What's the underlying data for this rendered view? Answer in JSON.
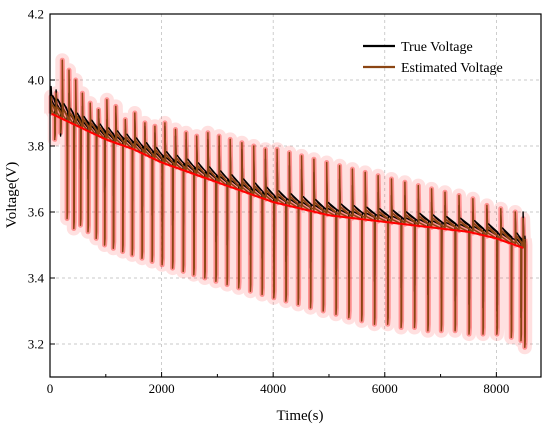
{
  "chart_data": {
    "type": "line",
    "xlabel": "Time(s)",
    "ylabel": "Voltage(V)",
    "xlim": [
      0,
      8800
    ],
    "ylim": [
      3.1,
      4.2
    ],
    "xticks": [
      0,
      2000,
      4000,
      6000,
      8000
    ],
    "xtick_labels": [
      "0",
      "2000",
      "4000",
      "6000",
      "8000"
    ],
    "yticks": [
      3.2,
      3.4,
      3.6,
      3.8,
      4.0,
      4.2
    ],
    "ytick_labels": [
      "3.2",
      "3.4",
      "3.6",
      "3.8",
      "4.0",
      "4.2"
    ],
    "grid": true,
    "legend_position": "top-right",
    "colors": {
      "true_voltage": "#000000",
      "estimated_voltage": "#8b4513",
      "estimate_band": "#ff0000",
      "grid": "#b8b8b8"
    },
    "pulse_times": [
      20,
      110,
      220,
      340,
      460,
      580,
      720,
      870,
      1020,
      1180,
      1350,
      1520,
      1700,
      1880,
      2060,
      2250,
      2440,
      2630,
      2830,
      3030,
      3230,
      3440,
      3650,
      3860,
      4070,
      4290,
      4510,
      4730,
      4960,
      5190,
      5420,
      5650,
      5880,
      6120,
      6360,
      6600,
      6840,
      7080,
      7330,
      7580,
      7830,
      8080,
      8340,
      8480
    ],
    "series": [
      {
        "name": "True Voltage",
        "x": [
          0,
          500,
          1000,
          1500,
          2000,
          2500,
          3000,
          3500,
          4000,
          4500,
          5000,
          5500,
          6000,
          6500,
          7000,
          7500,
          8000,
          8500
        ],
        "values": [
          3.93,
          3.87,
          3.83,
          3.8,
          3.76,
          3.73,
          3.7,
          3.67,
          3.64,
          3.62,
          3.6,
          3.59,
          3.58,
          3.57,
          3.56,
          3.55,
          3.53,
          3.5
        ],
        "pulse_high": [
          3.98,
          3.97,
          3.97,
          3.96,
          3.93,
          3.92,
          3.89,
          3.91,
          3.88,
          3.9,
          3.85,
          3.88,
          3.86,
          3.84,
          3.86,
          3.83,
          3.82,
          3.8,
          3.82,
          3.8,
          3.78,
          3.79,
          3.77,
          3.76,
          3.75,
          3.74,
          3.73,
          3.72,
          3.71,
          3.7,
          3.68,
          3.67,
          3.66,
          3.65,
          3.65,
          3.64,
          3.63,
          3.62,
          3.62,
          3.6,
          3.61,
          3.59,
          3.58,
          3.6
        ],
        "pulse_low": [
          3.82,
          3.83,
          3.8,
          3.76,
          3.73,
          3.7,
          3.67,
          3.66,
          3.65,
          3.63,
          3.62,
          3.6,
          3.59,
          3.57,
          3.56,
          3.55,
          3.54,
          3.52,
          3.51,
          3.5,
          3.49,
          3.47,
          3.46,
          3.45,
          3.45,
          3.44,
          3.43,
          3.42,
          3.41,
          3.4,
          3.4,
          3.39,
          3.38,
          3.37,
          3.36,
          3.35,
          3.34,
          3.33,
          3.32,
          3.31,
          3.3,
          3.29,
          3.28,
          3.22
        ]
      },
      {
        "name": "Estimated Voltage",
        "x": [
          0,
          500,
          1000,
          1500,
          2000,
          2500,
          3000,
          3500,
          4000,
          4500,
          5000,
          5500,
          6000,
          6500,
          7000,
          7500,
          8000,
          8500
        ],
        "values": [
          3.9,
          3.86,
          3.82,
          3.79,
          3.75,
          3.72,
          3.69,
          3.66,
          3.63,
          3.61,
          3.59,
          3.58,
          3.57,
          3.56,
          3.55,
          3.54,
          3.52,
          3.49
        ],
        "pulse_high": [
          3.95,
          3.96,
          4.06,
          4.03,
          4.0,
          3.96,
          3.93,
          3.91,
          3.94,
          3.92,
          3.88,
          3.9,
          3.87,
          3.86,
          3.87,
          3.85,
          3.84,
          3.83,
          3.84,
          3.83,
          3.82,
          3.81,
          3.8,
          3.79,
          3.79,
          3.78,
          3.77,
          3.76,
          3.75,
          3.74,
          3.73,
          3.72,
          3.71,
          3.7,
          3.69,
          3.68,
          3.67,
          3.66,
          3.65,
          3.64,
          3.62,
          3.61,
          3.6,
          3.58
        ],
        "pulse_low": [
          3.82,
          3.84,
          3.58,
          3.55,
          3.56,
          3.54,
          3.52,
          3.5,
          3.49,
          3.48,
          3.47,
          3.46,
          3.45,
          3.44,
          3.43,
          3.42,
          3.41,
          3.4,
          3.39,
          3.38,
          3.37,
          3.36,
          3.35,
          3.34,
          3.33,
          3.32,
          3.31,
          3.3,
          3.29,
          3.28,
          3.27,
          3.26,
          3.26,
          3.25,
          3.25,
          3.24,
          3.24,
          3.24,
          3.23,
          3.23,
          3.23,
          3.22,
          3.21,
          3.19
        ]
      }
    ]
  }
}
